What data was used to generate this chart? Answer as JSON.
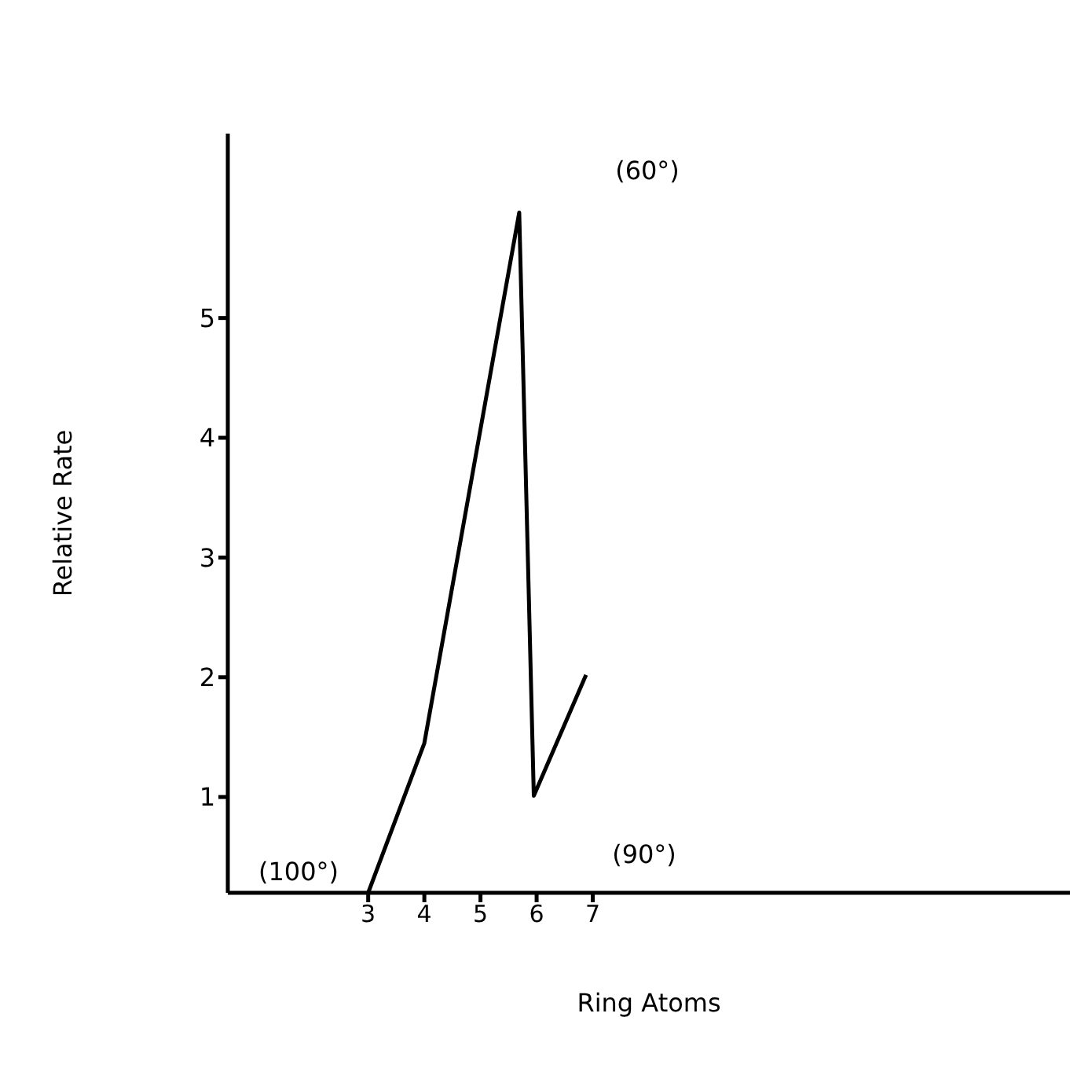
{
  "chart_data": {
    "type": "line",
    "xlabel": "Ring Atoms",
    "ylabel": "Relative Rate",
    "x": [
      3,
      4,
      5.69,
      5.95,
      6.88
    ],
    "series": [
      {
        "color": "#000000",
        "values": [
          0.2,
          1.45,
          5.88,
          1.01,
          2.02
        ]
      }
    ],
    "xlim": [
      0.5,
      15.5
    ],
    "xticks": [
      3,
      4,
      5,
      6,
      7
    ],
    "ylim": [
      0.2,
      6.54
    ],
    "yticks": [
      1,
      2,
      3,
      4,
      5
    ],
    "marker": "none",
    "legend": false,
    "grid": false,
    "annotations": [
      "(100°)",
      "(60°)",
      "(90°)"
    ]
  }
}
